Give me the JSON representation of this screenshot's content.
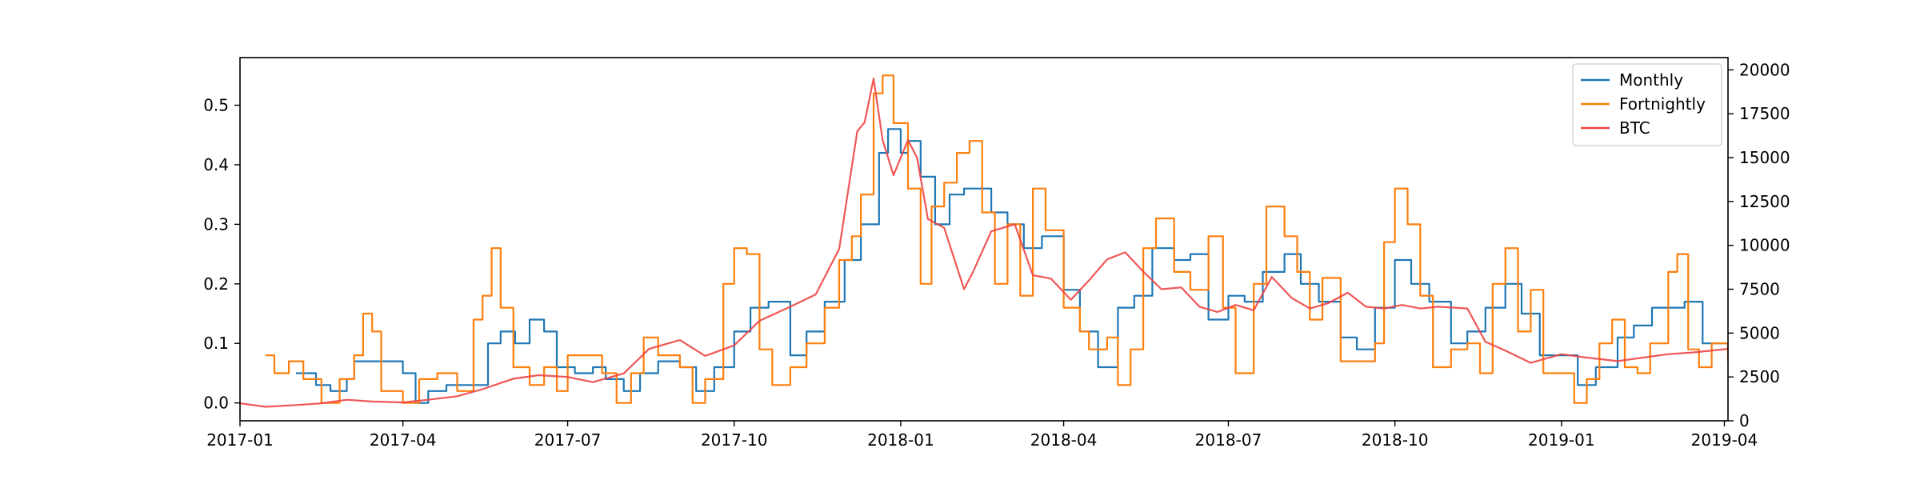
{
  "chart_data": {
    "type": "line",
    "title": "",
    "xlabel": "",
    "ylabel": "",
    "y2label": "",
    "x_ticks": [
      "2017-01",
      "2017-04",
      "2017-07",
      "2017-10",
      "2018-01",
      "2018-04",
      "2018-07",
      "2018-10",
      "2019-01",
      "2019-04"
    ],
    "y_ticks": [
      "0.0",
      "0.1",
      "0.2",
      "0.3",
      "0.4",
      "0.5"
    ],
    "y2_ticks": [
      "0",
      "2500",
      "5000",
      "7500",
      "10000",
      "12500",
      "15000",
      "17500",
      "20000"
    ],
    "xlim": [
      "2017-01-01",
      "2019-04-03"
    ],
    "ylim": [
      -0.03,
      0.58
    ],
    "y2lim": [
      0,
      20700
    ],
    "legend_position": "top-right",
    "series": [
      {
        "name": "Monthly",
        "axis": "left",
        "color": "#1f77b4",
        "points": [
          [
            "2017-02-01",
            0.05
          ],
          [
            "2017-02-12",
            0.03
          ],
          [
            "2017-02-20",
            0.02
          ],
          [
            "2017-03-01",
            0.04
          ],
          [
            "2017-03-05",
            0.07
          ],
          [
            "2017-03-25",
            0.07
          ],
          [
            "2017-04-01",
            0.05
          ],
          [
            "2017-04-08",
            0.0
          ],
          [
            "2017-04-15",
            0.02
          ],
          [
            "2017-04-25",
            0.03
          ],
          [
            "2017-05-10",
            0.03
          ],
          [
            "2017-05-18",
            0.1
          ],
          [
            "2017-05-25",
            0.12
          ],
          [
            "2017-06-02",
            0.1
          ],
          [
            "2017-06-10",
            0.14
          ],
          [
            "2017-06-18",
            0.12
          ],
          [
            "2017-06-25",
            0.06
          ],
          [
            "2017-07-05",
            0.05
          ],
          [
            "2017-07-15",
            0.06
          ],
          [
            "2017-07-22",
            0.04
          ],
          [
            "2017-08-01",
            0.02
          ],
          [
            "2017-08-10",
            0.05
          ],
          [
            "2017-08-20",
            0.07
          ],
          [
            "2017-09-01",
            0.06
          ],
          [
            "2017-09-10",
            0.02
          ],
          [
            "2017-09-20",
            0.06
          ],
          [
            "2017-10-01",
            0.12
          ],
          [
            "2017-10-10",
            0.16
          ],
          [
            "2017-10-20",
            0.17
          ],
          [
            "2017-11-01",
            0.08
          ],
          [
            "2017-11-10",
            0.12
          ],
          [
            "2017-11-20",
            0.17
          ],
          [
            "2017-12-01",
            0.24
          ],
          [
            "2017-12-10",
            0.3
          ],
          [
            "2017-12-20",
            0.42
          ],
          [
            "2017-12-25",
            0.46
          ],
          [
            "2018-01-01",
            0.42
          ],
          [
            "2018-01-05",
            0.44
          ],
          [
            "2018-01-12",
            0.38
          ],
          [
            "2018-01-20",
            0.3
          ],
          [
            "2018-01-28",
            0.35
          ],
          [
            "2018-02-05",
            0.36
          ],
          [
            "2018-02-15",
            0.36
          ],
          [
            "2018-02-20",
            0.32
          ],
          [
            "2018-03-01",
            0.3
          ],
          [
            "2018-03-10",
            0.26
          ],
          [
            "2018-03-20",
            0.28
          ],
          [
            "2018-04-01",
            0.19
          ],
          [
            "2018-04-10",
            0.12
          ],
          [
            "2018-04-20",
            0.06
          ],
          [
            "2018-05-01",
            0.16
          ],
          [
            "2018-05-10",
            0.18
          ],
          [
            "2018-05-20",
            0.26
          ],
          [
            "2018-06-01",
            0.24
          ],
          [
            "2018-06-10",
            0.25
          ],
          [
            "2018-06-20",
            0.14
          ],
          [
            "2018-07-01",
            0.18
          ],
          [
            "2018-07-10",
            0.17
          ],
          [
            "2018-07-20",
            0.22
          ],
          [
            "2018-08-01",
            0.25
          ],
          [
            "2018-08-10",
            0.2
          ],
          [
            "2018-08-20",
            0.17
          ],
          [
            "2018-09-01",
            0.11
          ],
          [
            "2018-09-10",
            0.09
          ],
          [
            "2018-09-20",
            0.16
          ],
          [
            "2018-10-01",
            0.24
          ],
          [
            "2018-10-10",
            0.2
          ],
          [
            "2018-10-20",
            0.17
          ],
          [
            "2018-11-01",
            0.1
          ],
          [
            "2018-11-10",
            0.12
          ],
          [
            "2018-11-20",
            0.16
          ],
          [
            "2018-12-01",
            0.2
          ],
          [
            "2018-12-10",
            0.15
          ],
          [
            "2018-12-20",
            0.08
          ],
          [
            "2019-01-01",
            0.08
          ],
          [
            "2019-01-10",
            0.03
          ],
          [
            "2019-01-20",
            0.06
          ],
          [
            "2019-02-01",
            0.11
          ],
          [
            "2019-02-10",
            0.13
          ],
          [
            "2019-02-20",
            0.16
          ],
          [
            "2019-03-01",
            0.16
          ],
          [
            "2019-03-10",
            0.17
          ],
          [
            "2019-03-20",
            0.1
          ],
          [
            "2019-04-03",
            0.09
          ]
        ]
      },
      {
        "name": "Fortnightly",
        "axis": "left",
        "color": "#ff7f0e",
        "points": [
          [
            "2017-01-15",
            0.08
          ],
          [
            "2017-01-20",
            0.05
          ],
          [
            "2017-01-28",
            0.07
          ],
          [
            "2017-02-05",
            0.04
          ],
          [
            "2017-02-15",
            0.0
          ],
          [
            "2017-02-25",
            0.04
          ],
          [
            "2017-03-05",
            0.08
          ],
          [
            "2017-03-10",
            0.15
          ],
          [
            "2017-03-15",
            0.12
          ],
          [
            "2017-03-20",
            0.02
          ],
          [
            "2017-04-01",
            0.0
          ],
          [
            "2017-04-10",
            0.04
          ],
          [
            "2017-04-20",
            0.05
          ],
          [
            "2017-05-01",
            0.02
          ],
          [
            "2017-05-10",
            0.14
          ],
          [
            "2017-05-15",
            0.18
          ],
          [
            "2017-05-20",
            0.26
          ],
          [
            "2017-05-25",
            0.16
          ],
          [
            "2017-06-01",
            0.06
          ],
          [
            "2017-06-10",
            0.03
          ],
          [
            "2017-06-18",
            0.06
          ],
          [
            "2017-06-25",
            0.02
          ],
          [
            "2017-07-01",
            0.08
          ],
          [
            "2017-07-10",
            0.08
          ],
          [
            "2017-07-20",
            0.05
          ],
          [
            "2017-07-28",
            0.0
          ],
          [
            "2017-08-05",
            0.05
          ],
          [
            "2017-08-12",
            0.11
          ],
          [
            "2017-08-20",
            0.08
          ],
          [
            "2017-09-01",
            0.06
          ],
          [
            "2017-09-08",
            0.0
          ],
          [
            "2017-09-15",
            0.04
          ],
          [
            "2017-09-25",
            0.2
          ],
          [
            "2017-10-01",
            0.26
          ],
          [
            "2017-10-08",
            0.25
          ],
          [
            "2017-10-15",
            0.09
          ],
          [
            "2017-10-22",
            0.03
          ],
          [
            "2017-11-01",
            0.06
          ],
          [
            "2017-11-10",
            0.1
          ],
          [
            "2017-11-20",
            0.16
          ],
          [
            "2017-11-28",
            0.24
          ],
          [
            "2017-12-05",
            0.28
          ],
          [
            "2017-12-10",
            0.35
          ],
          [
            "2017-12-17",
            0.52
          ],
          [
            "2017-12-22",
            0.55
          ],
          [
            "2017-12-28",
            0.47
          ],
          [
            "2018-01-05",
            0.36
          ],
          [
            "2018-01-12",
            0.2
          ],
          [
            "2018-01-18",
            0.33
          ],
          [
            "2018-01-25",
            0.37
          ],
          [
            "2018-02-01",
            0.42
          ],
          [
            "2018-02-08",
            0.44
          ],
          [
            "2018-02-15",
            0.32
          ],
          [
            "2018-02-22",
            0.2
          ],
          [
            "2018-03-01",
            0.3
          ],
          [
            "2018-03-08",
            0.18
          ],
          [
            "2018-03-15",
            0.36
          ],
          [
            "2018-03-22",
            0.29
          ],
          [
            "2018-04-01",
            0.16
          ],
          [
            "2018-04-10",
            0.12
          ],
          [
            "2018-04-15",
            0.09
          ],
          [
            "2018-04-25",
            0.11
          ],
          [
            "2018-05-01",
            0.03
          ],
          [
            "2018-05-08",
            0.09
          ],
          [
            "2018-05-15",
            0.26
          ],
          [
            "2018-05-22",
            0.31
          ],
          [
            "2018-06-01",
            0.22
          ],
          [
            "2018-06-10",
            0.19
          ],
          [
            "2018-06-20",
            0.28
          ],
          [
            "2018-06-28",
            0.16
          ],
          [
            "2018-07-05",
            0.05
          ],
          [
            "2018-07-15",
            0.2
          ],
          [
            "2018-07-22",
            0.33
          ],
          [
            "2018-08-01",
            0.28
          ],
          [
            "2018-08-08",
            0.22
          ],
          [
            "2018-08-15",
            0.14
          ],
          [
            "2018-08-22",
            0.21
          ],
          [
            "2018-09-01",
            0.07
          ],
          [
            "2018-09-10",
            0.07
          ],
          [
            "2018-09-20",
            0.1
          ],
          [
            "2018-09-25",
            0.27
          ],
          [
            "2018-10-01",
            0.36
          ],
          [
            "2018-10-08",
            0.3
          ],
          [
            "2018-10-15",
            0.18
          ],
          [
            "2018-10-22",
            0.06
          ],
          [
            "2018-11-01",
            0.09
          ],
          [
            "2018-11-10",
            0.1
          ],
          [
            "2018-11-17",
            0.05
          ],
          [
            "2018-11-24",
            0.2
          ],
          [
            "2018-12-01",
            0.26
          ],
          [
            "2018-12-08",
            0.12
          ],
          [
            "2018-12-15",
            0.19
          ],
          [
            "2018-12-22",
            0.05
          ],
          [
            "2019-01-01",
            0.05
          ],
          [
            "2019-01-08",
            0.0
          ],
          [
            "2019-01-15",
            0.04
          ],
          [
            "2019-01-22",
            0.1
          ],
          [
            "2019-01-29",
            0.14
          ],
          [
            "2019-02-05",
            0.06
          ],
          [
            "2019-02-12",
            0.05
          ],
          [
            "2019-02-19",
            0.1
          ],
          [
            "2019-03-01",
            0.22
          ],
          [
            "2019-03-06",
            0.25
          ],
          [
            "2019-03-12",
            0.09
          ],
          [
            "2019-03-18",
            0.06
          ],
          [
            "2019-03-25",
            0.1
          ],
          [
            "2019-04-03",
            0.07
          ]
        ]
      },
      {
        "name": "BTC",
        "axis": "right",
        "color": "#ee4444",
        "points": [
          [
            "2017-01-01",
            1000
          ],
          [
            "2017-01-15",
            800
          ],
          [
            "2017-02-01",
            900
          ],
          [
            "2017-02-15",
            1000
          ],
          [
            "2017-03-01",
            1200
          ],
          [
            "2017-03-15",
            1100
          ],
          [
            "2017-04-01",
            1050
          ],
          [
            "2017-04-15",
            1200
          ],
          [
            "2017-05-01",
            1400
          ],
          [
            "2017-05-15",
            1800
          ],
          [
            "2017-06-01",
            2400
          ],
          [
            "2017-06-15",
            2600
          ],
          [
            "2017-07-01",
            2500
          ],
          [
            "2017-07-15",
            2200
          ],
          [
            "2017-08-01",
            2700
          ],
          [
            "2017-08-15",
            4100
          ],
          [
            "2017-09-01",
            4600
          ],
          [
            "2017-09-15",
            3700
          ],
          [
            "2017-10-01",
            4300
          ],
          [
            "2017-10-15",
            5700
          ],
          [
            "2017-11-01",
            6500
          ],
          [
            "2017-11-15",
            7200
          ],
          [
            "2017-11-28",
            9800
          ],
          [
            "2017-12-08",
            16500
          ],
          [
            "2017-12-12",
            17000
          ],
          [
            "2017-12-17",
            19500
          ],
          [
            "2017-12-22",
            16000
          ],
          [
            "2017-12-28",
            14000
          ],
          [
            "2018-01-05",
            16000
          ],
          [
            "2018-01-10",
            15000
          ],
          [
            "2018-01-16",
            11500
          ],
          [
            "2018-01-25",
            11000
          ],
          [
            "2018-02-05",
            7500
          ],
          [
            "2018-02-10",
            8500
          ],
          [
            "2018-02-20",
            10800
          ],
          [
            "2018-03-05",
            11200
          ],
          [
            "2018-03-15",
            8300
          ],
          [
            "2018-03-25",
            8100
          ],
          [
            "2018-04-05",
            6900
          ],
          [
            "2018-04-15",
            8000
          ],
          [
            "2018-04-25",
            9200
          ],
          [
            "2018-05-05",
            9600
          ],
          [
            "2018-05-15",
            8500
          ],
          [
            "2018-05-25",
            7500
          ],
          [
            "2018-06-05",
            7600
          ],
          [
            "2018-06-15",
            6500
          ],
          [
            "2018-06-25",
            6200
          ],
          [
            "2018-07-05",
            6600
          ],
          [
            "2018-07-15",
            6300
          ],
          [
            "2018-07-25",
            8200
          ],
          [
            "2018-08-05",
            7000
          ],
          [
            "2018-08-15",
            6400
          ],
          [
            "2018-08-25",
            6700
          ],
          [
            "2018-09-05",
            7300
          ],
          [
            "2018-09-15",
            6500
          ],
          [
            "2018-09-25",
            6400
          ],
          [
            "2018-10-05",
            6600
          ],
          [
            "2018-10-15",
            6400
          ],
          [
            "2018-10-25",
            6500
          ],
          [
            "2018-11-10",
            6400
          ],
          [
            "2018-11-20",
            4500
          ],
          [
            "2018-12-01",
            4000
          ],
          [
            "2018-12-15",
            3300
          ],
          [
            "2019-01-01",
            3800
          ],
          [
            "2019-01-15",
            3600
          ],
          [
            "2019-02-01",
            3400
          ],
          [
            "2019-02-15",
            3600
          ],
          [
            "2019-03-01",
            3800
          ],
          [
            "2019-03-15",
            3900
          ],
          [
            "2019-04-03",
            4100
          ]
        ]
      }
    ]
  },
  "colors": {
    "axis": "#000000",
    "background": "#ffffff"
  }
}
